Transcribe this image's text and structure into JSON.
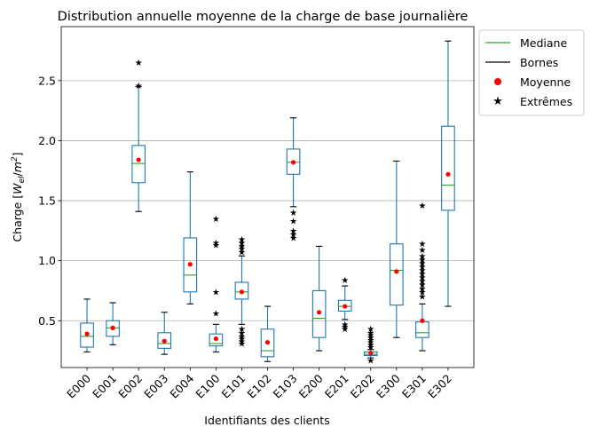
{
  "chart_data": {
    "type": "boxplot",
    "title": "Distribution annuelle moyenne de la charge de base journalière",
    "xlabel": "Identifiants des clients",
    "ylabel_prefix": "Charge [",
    "ylabel_var": "W",
    "ylabel_sub": "el",
    "ylabel_sep": "/",
    "ylabel_unit": "m",
    "ylabel_sup": "2",
    "ylabel_suffix": "]",
    "ylim": [
      0.11,
      2.95
    ],
    "yticks": [
      "0.5",
      "1.0",
      "1.5",
      "2.0",
      "2.5"
    ],
    "grid": "horizontal",
    "legend_position": "outside-top-right",
    "legend": [
      {
        "label": "Mediane",
        "marker": "line",
        "color": "#2ca02c"
      },
      {
        "label": "Bornes",
        "marker": "line",
        "color": "#000000"
      },
      {
        "label": "Moyenne",
        "marker": "dot",
        "color": "#ff0000"
      },
      {
        "label": "Extrêmes",
        "marker": "star",
        "color": "#000000"
      }
    ],
    "colors": {
      "box": "#1f77b4",
      "median": "#2ca02c",
      "mean": "#ff0000",
      "flier": "#000000",
      "cap": "#000000",
      "grid": "#b0b0b0"
    },
    "categories": [
      "E000",
      "E001",
      "E002",
      "E003",
      "E004",
      "E100",
      "E101",
      "E102",
      "E103",
      "E200",
      "E201",
      "E202",
      "E300",
      "E301",
      "E302"
    ],
    "boxes": [
      {
        "whislo": 0.24,
        "q1": 0.28,
        "med": 0.37,
        "q3": 0.48,
        "whishi": 0.68,
        "mean": 0.39,
        "fliers": []
      },
      {
        "whislo": 0.3,
        "q1": 0.37,
        "med": 0.44,
        "q3": 0.5,
        "whishi": 0.65,
        "mean": 0.44,
        "fliers": []
      },
      {
        "whislo": 1.41,
        "q1": 1.65,
        "med": 1.81,
        "q3": 1.96,
        "whishi": 2.45,
        "mean": 1.84,
        "fliers": [
          2.46,
          2.65
        ]
      },
      {
        "whislo": 0.22,
        "q1": 0.27,
        "med": 0.31,
        "q3": 0.4,
        "whishi": 0.57,
        "mean": 0.33,
        "fliers": []
      },
      {
        "whislo": 0.64,
        "q1": 0.74,
        "med": 0.88,
        "q3": 1.19,
        "whishi": 1.74,
        "mean": 0.97,
        "fliers": []
      },
      {
        "whislo": 0.24,
        "q1": 0.29,
        "med": 0.31,
        "q3": 0.39,
        "whishi": 0.47,
        "mean": 0.35,
        "fliers": [
          0.56,
          0.74,
          1.13,
          1.15,
          1.35
        ]
      },
      {
        "whislo": 0.47,
        "q1": 0.68,
        "med": 0.74,
        "q3": 0.82,
        "whishi": 1.04,
        "mean": 0.74,
        "fliers": [
          0.31,
          0.33,
          0.35,
          0.37,
          0.4,
          0.43,
          1.07,
          1.1,
          1.12,
          1.15,
          1.18
        ]
      },
      {
        "whislo": 0.16,
        "q1": 0.2,
        "med": 0.25,
        "q3": 0.43,
        "whishi": 0.62,
        "mean": 0.32,
        "fliers": []
      },
      {
        "whislo": 1.45,
        "q1": 1.72,
        "med": 1.82,
        "q3": 1.93,
        "whishi": 2.19,
        "mean": 1.82,
        "fliers": [
          1.19,
          1.22,
          1.25,
          1.33,
          1.4
        ]
      },
      {
        "whislo": 0.25,
        "q1": 0.36,
        "med": 0.52,
        "q3": 0.75,
        "whishi": 1.12,
        "mean": 0.57,
        "fliers": []
      },
      {
        "whislo": 0.51,
        "q1": 0.58,
        "med": 0.62,
        "q3": 0.67,
        "whishi": 0.79,
        "mean": 0.62,
        "fliers": [
          0.43,
          0.45,
          0.47,
          0.84
        ]
      },
      {
        "whislo": 0.19,
        "q1": 0.21,
        "med": 0.22,
        "q3": 0.24,
        "whishi": 0.26,
        "mean": 0.23,
        "fliers": [
          0.17,
          0.28,
          0.3,
          0.32,
          0.34,
          0.36,
          0.38,
          0.4,
          0.43
        ]
      },
      {
        "whislo": 0.36,
        "q1": 0.63,
        "med": 0.92,
        "q3": 1.14,
        "whishi": 1.83,
        "mean": 0.91,
        "fliers": []
      },
      {
        "whislo": 0.25,
        "q1": 0.36,
        "med": 0.4,
        "q3": 0.49,
        "whishi": 0.64,
        "mean": 0.5,
        "fliers": [
          0.7,
          0.74,
          0.77,
          0.8,
          0.83,
          0.86,
          0.89,
          0.92,
          0.95,
          0.98,
          1.01,
          1.04,
          1.09,
          1.14,
          1.46
        ]
      },
      {
        "whislo": 0.62,
        "q1": 1.42,
        "med": 1.63,
        "q3": 2.12,
        "whishi": 2.83,
        "mean": 1.72,
        "fliers": []
      }
    ]
  }
}
